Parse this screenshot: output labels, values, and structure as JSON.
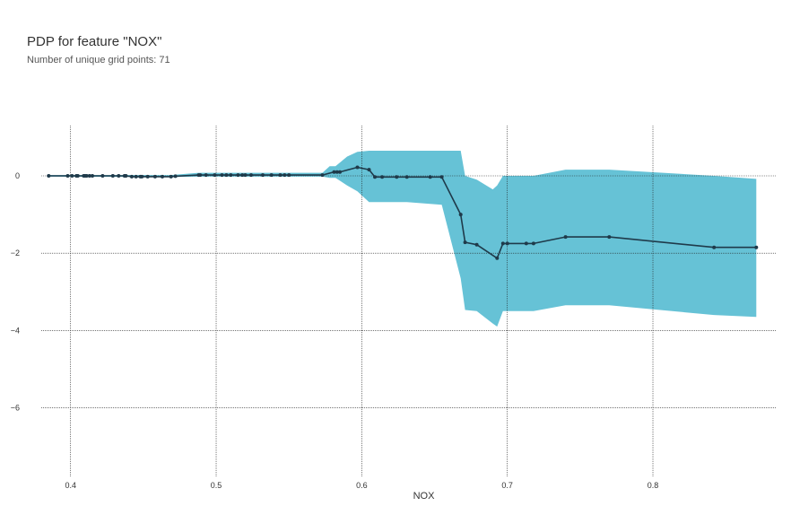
{
  "title": "PDP for feature \"NOX\"",
  "subtitle": "Number of unique grid points: 71",
  "chart_data": {
    "type": "line",
    "title": "PDP for feature \"NOX\"",
    "subtitle": "Number of unique grid points: 71",
    "xlabel": "NOX",
    "ylabel": "",
    "xlim": [
      0.37,
      0.885
    ],
    "ylim": [
      -7.8,
      1.3
    ],
    "xticks": [
      "0.4",
      "0.5",
      "0.6",
      "0.7",
      "0.8"
    ],
    "xtick_values": [
      0.4,
      0.5,
      0.6,
      0.7,
      0.8
    ],
    "yticks": [
      "0",
      "−2",
      "−4",
      "−6"
    ],
    "ytick_values": [
      0,
      -2,
      -4,
      -6
    ],
    "grid": true,
    "colors": {
      "line": "#1f3a4a",
      "band": "#66c2d6",
      "grid": "#222222"
    },
    "x": [
      0.385,
      0.398,
      0.401,
      0.404,
      0.405,
      0.409,
      0.41,
      0.411,
      0.413,
      0.415,
      0.422,
      0.429,
      0.433,
      0.437,
      0.438,
      0.442,
      0.445,
      0.448,
      0.449,
      0.453,
      0.458,
      0.463,
      0.469,
      0.472,
      0.488,
      0.489,
      0.493,
      0.499,
      0.504,
      0.507,
      0.51,
      0.515,
      0.518,
      0.52,
      0.524,
      0.532,
      0.538,
      0.544,
      0.547,
      0.55,
      0.573,
      0.581,
      0.583,
      0.585,
      0.597,
      0.605,
      0.609,
      0.614,
      0.624,
      0.631,
      0.647,
      0.655,
      0.668,
      0.671,
      0.679,
      0.693,
      0.697,
      0.7,
      0.713,
      0.718,
      0.74,
      0.77,
      0.842,
      0.871
    ],
    "y": [
      0.0,
      0.0,
      0.0,
      0.0,
      0.0,
      0.0,
      0.0,
      0.0,
      0.0,
      0.0,
      0.0,
      0.0,
      0.0,
      0.0,
      0.0,
      -0.02,
      -0.02,
      -0.02,
      -0.02,
      -0.02,
      -0.02,
      -0.02,
      -0.02,
      -0.01,
      0.02,
      0.02,
      0.02,
      0.02,
      0.02,
      0.02,
      0.02,
      0.02,
      0.02,
      0.02,
      0.02,
      0.02,
      0.02,
      0.02,
      0.02,
      0.02,
      0.02,
      0.1,
      0.1,
      0.1,
      0.22,
      0.16,
      -0.03,
      -0.03,
      -0.03,
      -0.03,
      -0.03,
      -0.03,
      -1.0,
      -1.72,
      -1.78,
      -2.13,
      -1.75,
      -1.75,
      -1.75,
      -1.75,
      -1.58,
      -1.58,
      -1.85,
      -1.85
    ],
    "band_x": [
      0.385,
      0.469,
      0.488,
      0.573,
      0.578,
      0.582,
      0.59,
      0.597,
      0.605,
      0.609,
      0.614,
      0.631,
      0.655,
      0.668,
      0.671,
      0.679,
      0.69,
      0.693,
      0.697,
      0.7,
      0.718,
      0.74,
      0.77,
      0.842,
      0.871
    ],
    "band_upper": [
      0.02,
      0.02,
      0.08,
      0.08,
      0.25,
      0.25,
      0.5,
      0.62,
      0.65,
      0.65,
      0.65,
      0.65,
      0.65,
      0.65,
      0.0,
      -0.1,
      -0.35,
      -0.25,
      0.0,
      0.0,
      0.0,
      0.16,
      0.16,
      0.0,
      -0.08
    ],
    "band_lower": [
      -0.02,
      -0.03,
      -0.02,
      -0.02,
      -0.05,
      -0.05,
      -0.25,
      -0.4,
      -0.68,
      -0.68,
      -0.68,
      -0.68,
      -0.75,
      -2.65,
      -3.47,
      -3.5,
      -3.82,
      -3.9,
      -3.5,
      -3.5,
      -3.5,
      -3.35,
      -3.35,
      -3.6,
      -3.65
    ]
  }
}
